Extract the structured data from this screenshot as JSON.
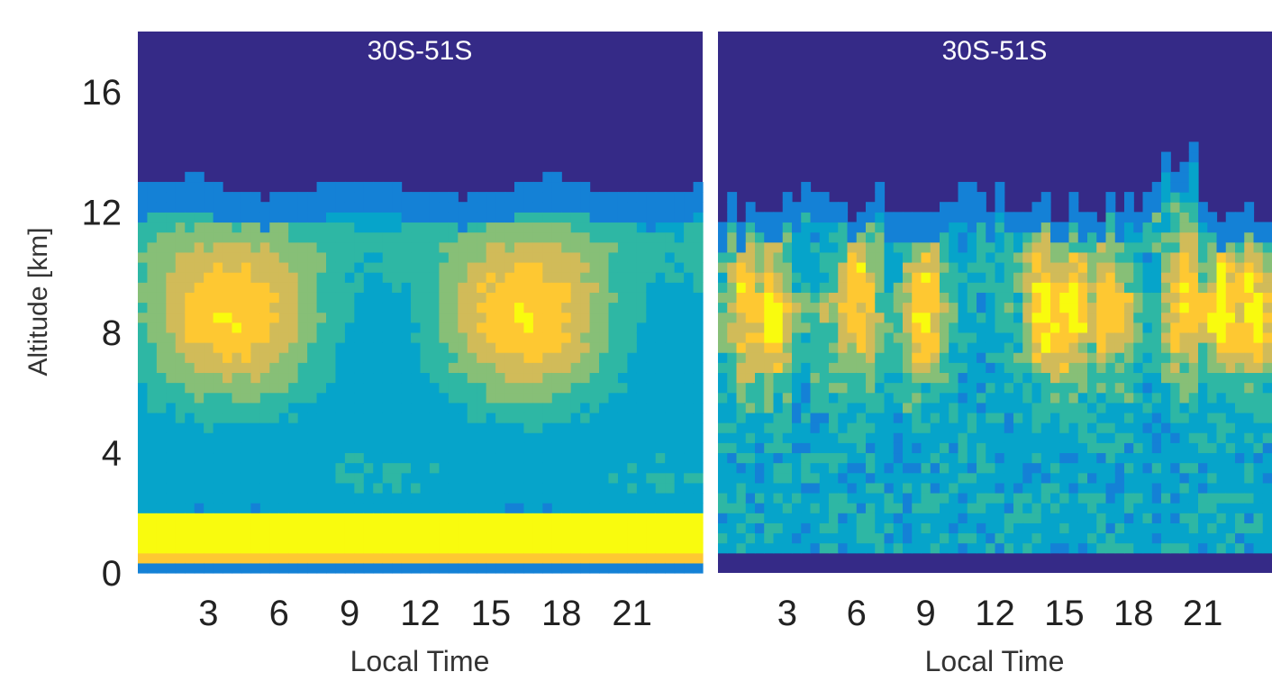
{
  "chart_data": [
    {
      "type": "heatmap",
      "title": "30S-51S",
      "xlabel": "Local Time",
      "ylabel": "Altitude [km]",
      "xlim": [
        0,
        24
      ],
      "ylim": [
        0,
        18
      ],
      "xticks": [
        3,
        6,
        9,
        12,
        15,
        18,
        21
      ],
      "yticks": [
        0,
        4,
        8,
        12,
        16
      ],
      "grid": false,
      "colormap": [
        "#352a87",
        "#0f5cdd",
        "#1481d6",
        "#06a4ca",
        "#2eb7a4",
        "#87bf77",
        "#d1bb59",
        "#fec832",
        "#f9fb0e"
      ],
      "background_color": "#352a87",
      "description_of_field": "smooth diurnal cloud-occurrence pattern: near-surface maximum 0.5-2 km, broad maxima near 8-9 km around 0-6 LT and 16-24 LT, cloud top near 12.5 km"
    },
    {
      "type": "heatmap",
      "title": "30S-51S",
      "xlabel": "Local Time",
      "ylabel": "",
      "xlim": [
        0,
        24
      ],
      "ylim": [
        0,
        18
      ],
      "xticks": [
        3,
        6,
        9,
        12,
        15,
        18,
        21
      ],
      "yticks": [],
      "grid": false,
      "colormap": [
        "#352a87",
        "#0f5cdd",
        "#1481d6",
        "#06a4ca",
        "#2eb7a4",
        "#87bf77",
        "#d1bb59",
        "#fec832",
        "#f9fb0e"
      ],
      "background_color": "#352a87",
      "description_of_field": "noisy column-like pattern: peaks near 8-9 km at about 1, 2, 6, 9, 14, 15, 17, 20-22 LT; cloud tops 11-14 km"
    }
  ]
}
